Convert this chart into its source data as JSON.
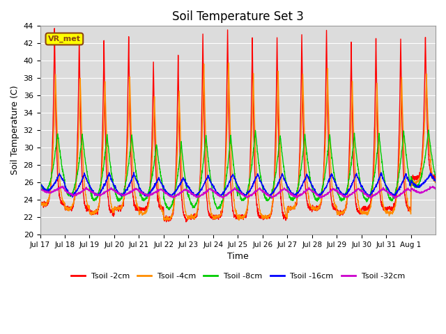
{
  "title": "Soil Temperature Set 3",
  "xlabel": "Time",
  "ylabel": "Soil Temperature (C)",
  "ylim": [
    20,
    44
  ],
  "yticks": [
    20,
    22,
    24,
    26,
    28,
    30,
    32,
    34,
    36,
    38,
    40,
    42,
    44
  ],
  "bg_color": "#dcdcdc",
  "fig_color": "#ffffff",
  "annotation_text": "VR_met",
  "annotation_bg": "#ffff00",
  "annotation_border": "#8B4513",
  "series": [
    {
      "label": "Tsoil -2cm",
      "color": "#ff0000"
    },
    {
      "label": "Tsoil -4cm",
      "color": "#ff8c00"
    },
    {
      "label": "Tsoil -8cm",
      "color": "#00cc00"
    },
    {
      "label": "Tsoil -16cm",
      "color": "#0000ff"
    },
    {
      "label": "Tsoil -32cm",
      "color": "#cc00cc"
    }
  ],
  "xtick_labels": [
    "Jul 17",
    "Jul 18",
    "Jul 19",
    "Jul 20",
    "Jul 21",
    "Jul 22",
    "Jul 23",
    "Jul 24",
    "Jul 25",
    "Jul 26",
    "Jul 27",
    "Jul 28",
    "Jul 29",
    "Jul 30",
    "Jul 31",
    "Aug 1"
  ],
  "n_days": 16,
  "spd": 144,
  "day_peaks_2cm": [
    43.5,
    42.8,
    42.2,
    42.7,
    40.0,
    40.5,
    43.0,
    43.8,
    42.5,
    42.5,
    43.0,
    43.5,
    42.0,
    42.5,
    42.5,
    43.0
  ],
  "day_peaks_4cm": [
    38.5,
    38.0,
    37.8,
    38.2,
    36.0,
    36.5,
    39.5,
    39.8,
    38.5,
    38.5,
    38.5,
    39.0,
    37.5,
    37.5,
    38.0,
    38.5
  ],
  "day_peaks_8cm": [
    31.8,
    31.5,
    31.5,
    31.5,
    30.5,
    30.5,
    31.5,
    31.5,
    32.0,
    31.5,
    31.5,
    31.5,
    31.5,
    31.5,
    32.0,
    32.0
  ],
  "day_peaks_16cm": [
    27.0,
    27.0,
    27.0,
    27.0,
    26.5,
    26.5,
    26.8,
    27.0,
    27.0,
    27.0,
    27.0,
    27.0,
    27.0,
    27.0,
    27.0,
    27.0
  ],
  "day_peaks_32cm": [
    25.5,
    25.3,
    25.3,
    25.3,
    25.2,
    25.2,
    25.3,
    25.3,
    25.3,
    25.3,
    25.3,
    25.3,
    25.3,
    25.3,
    25.3,
    25.5
  ],
  "day_mins_2cm": [
    23.5,
    23.0,
    22.5,
    23.0,
    23.0,
    21.8,
    22.0,
    22.0,
    22.0,
    22.0,
    23.0,
    23.0,
    22.5,
    23.0,
    23.0,
    26.5
  ],
  "day_mins_4cm": [
    23.5,
    23.0,
    22.5,
    23.0,
    22.5,
    21.8,
    22.0,
    22.0,
    22.0,
    22.0,
    23.0,
    23.0,
    22.5,
    22.5,
    22.5,
    26.0
  ],
  "day_mins_8cm": [
    25.0,
    24.5,
    24.0,
    24.0,
    24.0,
    23.0,
    23.2,
    23.0,
    24.0,
    24.0,
    24.0,
    24.0,
    24.0,
    24.0,
    24.0,
    25.5
  ],
  "day_mins_16cm": [
    25.0,
    24.5,
    24.5,
    24.5,
    24.5,
    24.5,
    24.5,
    24.5,
    24.5,
    24.5,
    24.5,
    24.5,
    24.5,
    24.5,
    24.5,
    25.5
  ],
  "day_mins_32cm": [
    24.8,
    24.5,
    24.5,
    24.5,
    24.5,
    24.3,
    24.3,
    24.3,
    24.3,
    24.3,
    24.3,
    24.3,
    24.3,
    24.3,
    24.3,
    24.8
  ],
  "peak_hour_2cm": 14,
  "peak_hour_4cm": 15,
  "peak_hour_8cm": 17,
  "peak_hour_16cm": 19,
  "peak_hour_32cm": 21,
  "sharpness_2cm": 6,
  "sharpness_4cm": 4,
  "sharpness_8cm": 2,
  "sharpness_16cm": 1.5,
  "sharpness_32cm": 1.2
}
